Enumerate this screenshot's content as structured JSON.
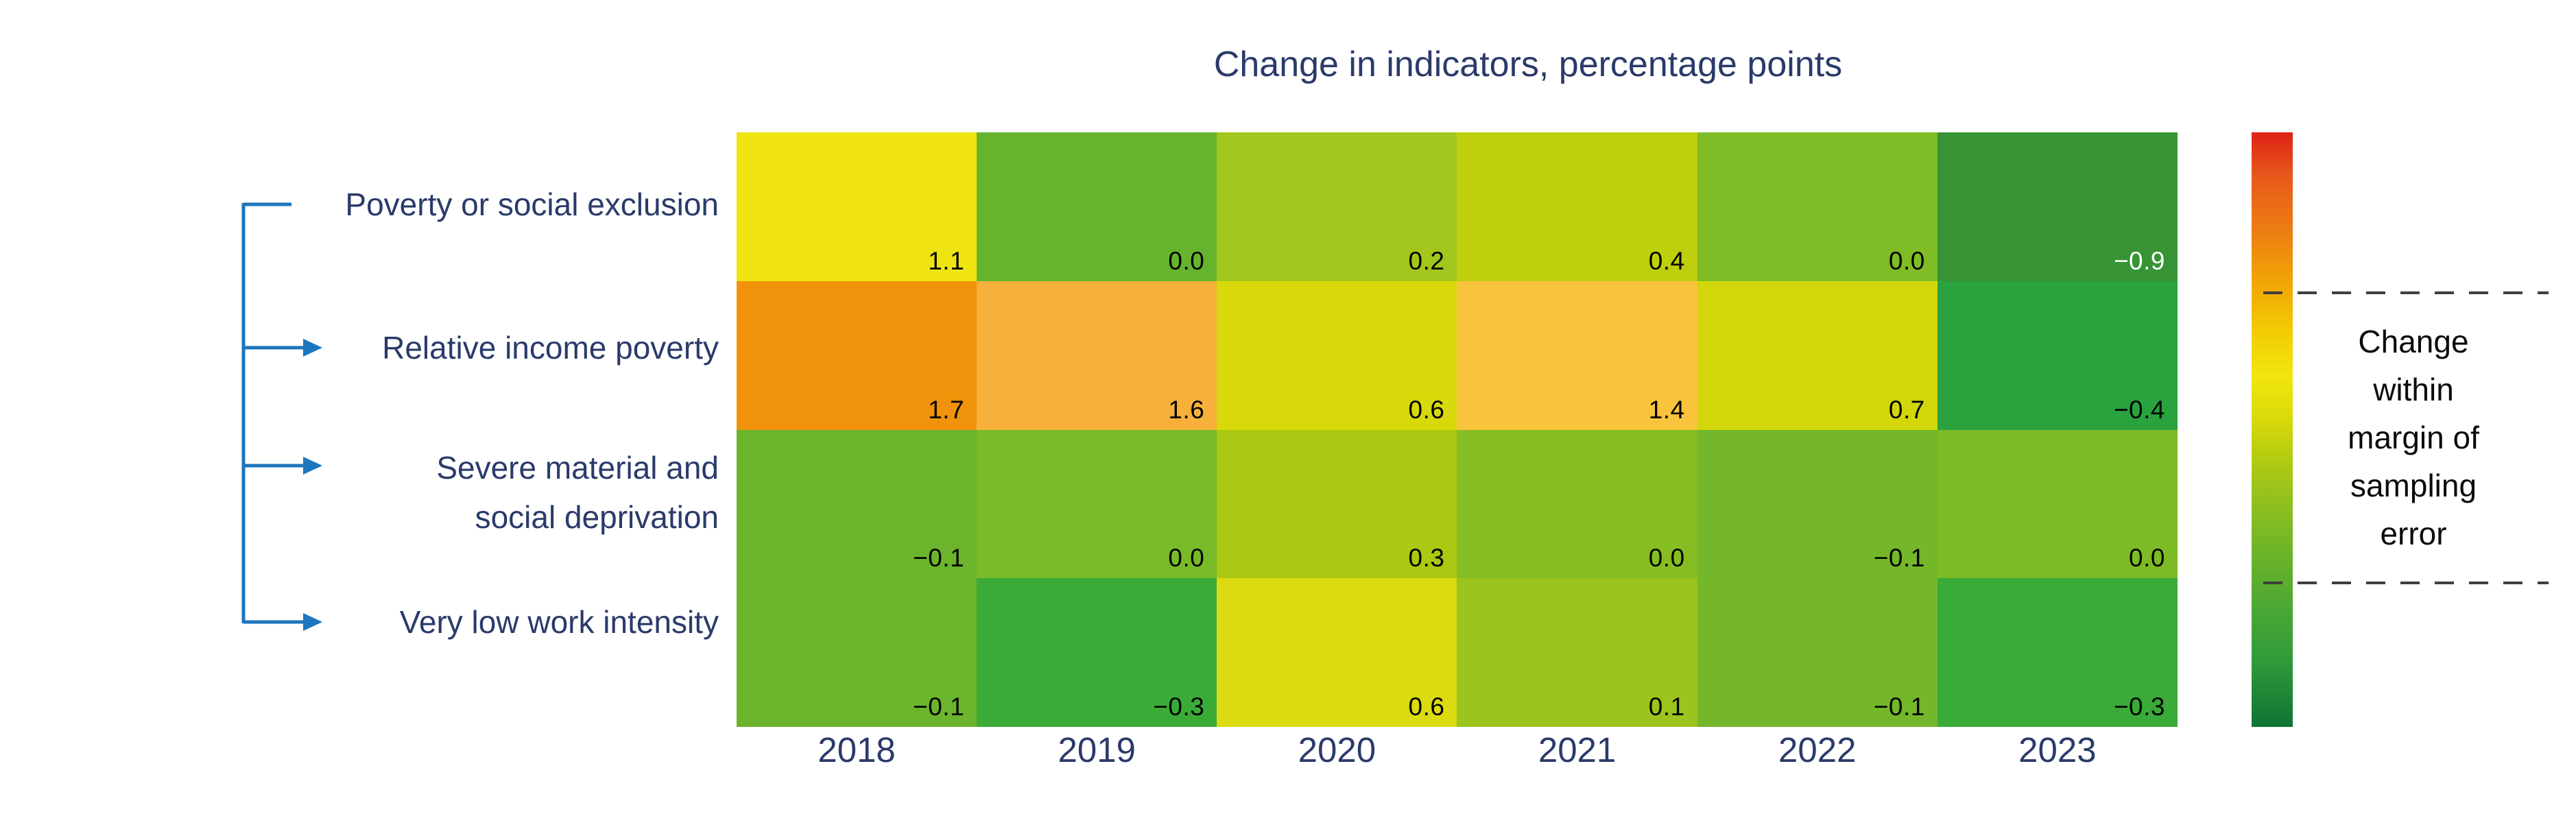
{
  "title": "Change in indicators, percentage points",
  "legend": {
    "note_lines": [
      "Change",
      "within",
      "margin of",
      "sampling",
      "error"
    ],
    "note_text": "Change within margin of sampling error"
  },
  "colors": {
    "title_text": "#2a3a6a",
    "axis_text": "#2a3a6a",
    "row_label_text": "#2a3a6a",
    "arrow_blue": "#1d76bd",
    "value_text": "#000000",
    "value_text_on_dark": "#ffffff",
    "dashed_line": "#3f3f3f",
    "colorbar_gradient": [
      "#de2316",
      "#e85c1a",
      "#ec7b12",
      "#f1a306",
      "#f4c903",
      "#f2e60e",
      "#d9da09",
      "#b3cb11",
      "#8cbf20",
      "#68b22b",
      "#47a634",
      "#2f9a3a",
      "#0e7434"
    ],
    "colorbar_stops_pct": [
      0,
      8,
      16,
      25,
      33,
      41,
      48,
      55,
      63,
      72,
      81,
      89,
      100
    ]
  },
  "chart_data": {
    "type": "heatmap",
    "title": "Change in indicators, percentage points",
    "unit": "percentage points",
    "x": [
      "2018",
      "2019",
      "2020",
      "2021",
      "2022",
      "2023"
    ],
    "rows": [
      {
        "name": "Poverty or social exclusion",
        "label_lines": [
          "Poverty or social exclusion"
        ],
        "values": [
          1.1,
          0.0,
          0.2,
          0.4,
          0.0,
          -0.9
        ]
      },
      {
        "name": "Relative income poverty",
        "label_lines": [
          "Relative income poverty"
        ],
        "values": [
          1.7,
          1.6,
          0.6,
          1.4,
          0.7,
          -0.4
        ]
      },
      {
        "name": "Severe material and social deprivation",
        "label_lines": [
          "Severe material and",
          "social deprivation"
        ],
        "values": [
          -0.1,
          0.0,
          0.3,
          0.0,
          -0.1,
          0.0
        ]
      },
      {
        "name": "Very low work intensity",
        "label_lines": [
          "Very low work intensity"
        ],
        "values": [
          -0.1,
          -0.3,
          0.6,
          0.1,
          -0.1,
          -0.3
        ]
      }
    ],
    "value_display": [
      [
        "1.1",
        "0.0",
        "0.2",
        "0.4",
        "0.0",
        "−0.9"
      ],
      [
        "1.7",
        "1.6",
        "0.6",
        "1.4",
        "0.7",
        "−0.4"
      ],
      [
        "−0.1",
        "0.0",
        "0.3",
        "0.0",
        "−0.1",
        "0.0"
      ],
      [
        "−0.1",
        "−0.3",
        "0.6",
        "0.1",
        "−0.1",
        "−0.3"
      ]
    ],
    "cell_colors": [
      [
        "#efe412",
        "#66b42e",
        "#a3c61c",
        "#bdcf0d",
        "#7fbc25",
        "#379434"
      ],
      [
        "#f0930a",
        "#f7b13b",
        "#d8d90a",
        "#fac33c",
        "#d2d60b",
        "#2aa23e"
      ],
      [
        "#6cb42b",
        "#79ba29",
        "#abc813",
        "#86bd22",
        "#74b72b",
        "#7cba26"
      ],
      [
        "#6cb42b",
        "#3bab37",
        "#dcda10",
        "#9cc41e",
        "#74b72b",
        "#3aaa38"
      ]
    ],
    "light_text_cells": [
      [
        0,
        5
      ]
    ],
    "legend_note": "Change within margin of sampling error",
    "layout": {
      "grid": "off",
      "colorbar_position": "right",
      "value_label_position": "bottom-right of cell"
    }
  }
}
